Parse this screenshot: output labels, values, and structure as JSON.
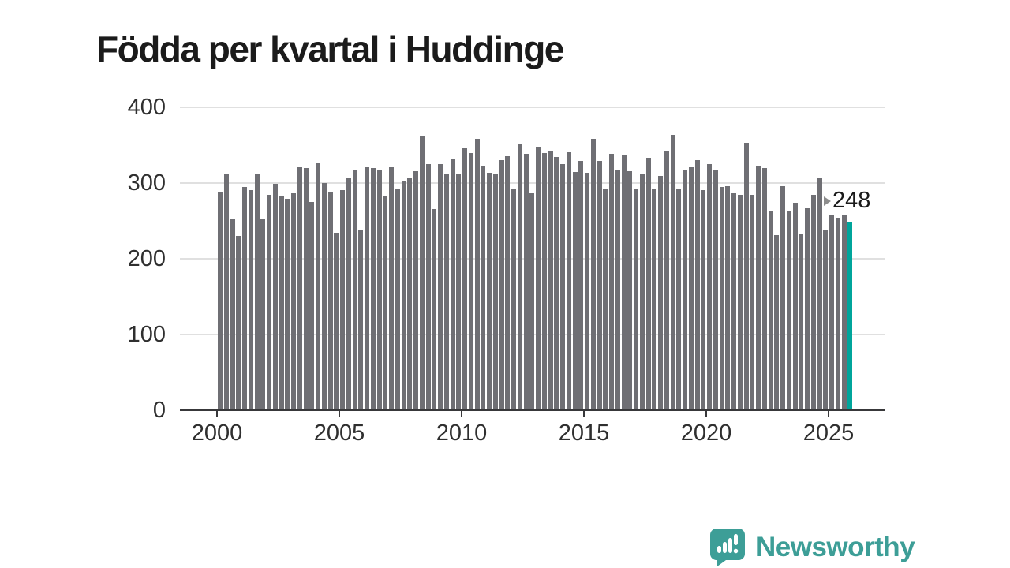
{
  "title": "Födda per kvartal i Huddinge",
  "colors": {
    "bar": "#6f6f74",
    "highlight": "#00a59b",
    "grid": "#e0e0e0",
    "axis": "#38383a",
    "logo": "#3d9e97"
  },
  "annotation": {
    "label": "248"
  },
  "footer": {
    "logo_text": "Newsworthy",
    "logo_icon": "speech-bubble-bar-chart-exclamation"
  },
  "chart_data": {
    "type": "bar",
    "title": "Födda per kvartal i Huddinge",
    "xlabel": "",
    "ylabel": "",
    "frequency": "quarterly",
    "start": "2000-Q1",
    "end": "2025-Q4",
    "ylim": [
      0,
      400
    ],
    "yticks": [
      0,
      100,
      200,
      300,
      400
    ],
    "xticks": [
      2000,
      2005,
      2010,
      2015,
      2020,
      2025
    ],
    "grid": "horizontal",
    "legend": "none",
    "highlight_last_bar": true,
    "highlight_value_label": "248",
    "values": [
      287,
      312,
      252,
      230,
      295,
      291,
      311,
      252,
      284,
      299,
      283,
      279,
      286,
      321,
      320,
      275,
      326,
      300,
      287,
      234,
      291,
      307,
      318,
      237,
      321,
      320,
      318,
      282,
      321,
      293,
      302,
      307,
      316,
      361,
      325,
      266,
      325,
      312,
      331,
      311,
      346,
      340,
      358,
      322,
      314,
      313,
      330,
      335,
      292,
      352,
      339,
      286,
      348,
      340,
      342,
      334,
      325,
      341,
      315,
      329,
      314,
      358,
      329,
      293,
      339,
      318,
      337,
      316,
      292,
      313,
      333,
      292,
      309,
      343,
      364,
      292,
      317,
      321,
      330,
      291,
      325,
      318,
      295,
      296,
      286,
      284,
      353,
      284,
      323,
      320,
      264,
      231,
      296,
      262,
      274,
      233,
      267,
      284,
      306,
      238,
      257,
      254,
      257,
      248
    ]
  }
}
